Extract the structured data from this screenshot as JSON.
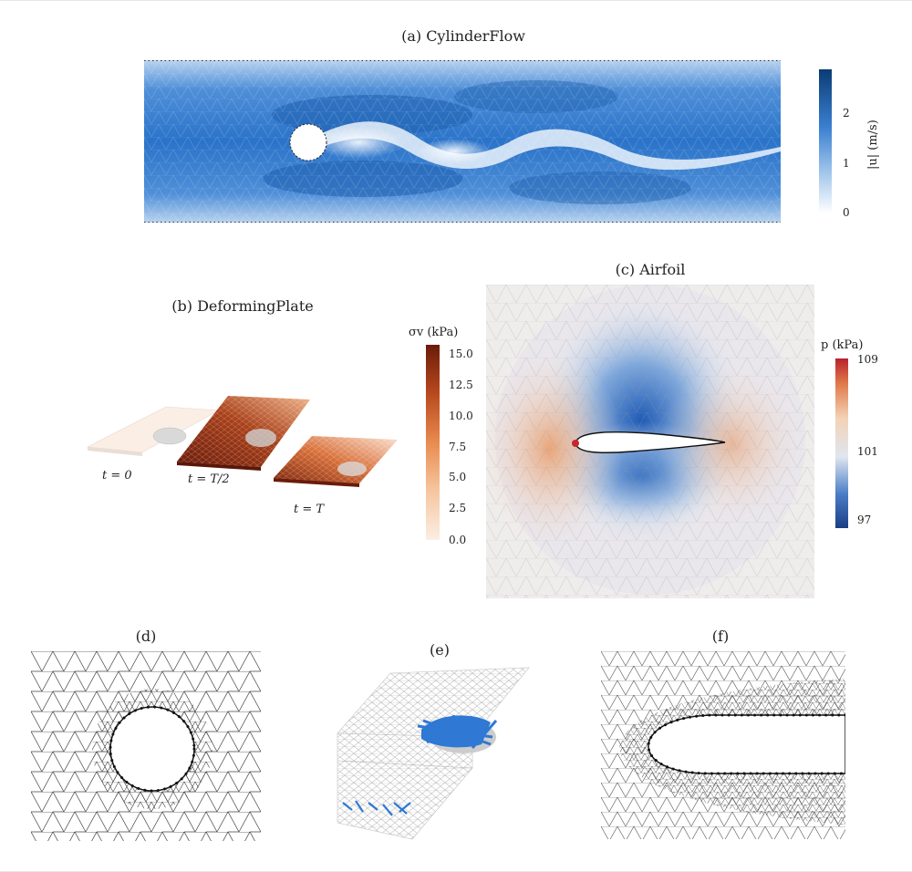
{
  "panels": {
    "a": {
      "title": "(a) CylinderFlow",
      "colorbar_label": "|u| (m/s)",
      "ticks": [
        "0",
        "1",
        "2"
      ],
      "colors": {
        "low": "#ffffff",
        "mid": "#4a90d9",
        "high": "#0b3c73"
      }
    },
    "b": {
      "title": "(b) DeformingPlate",
      "colorbar_label": "σv (kPa)",
      "ticks": [
        "0.0",
        "2.5",
        "5.0",
        "7.5",
        "10.0",
        "12.5",
        "15.0"
      ],
      "time_labels": [
        "t = 0",
        "t = T/2",
        "t = T"
      ],
      "colors": {
        "low": "#fbeee4",
        "mid": "#e98b4f",
        "high": "#6b1b0a"
      }
    },
    "c": {
      "title": "(c) Airfoil",
      "colorbar_label": "p (kPa)",
      "ticks": [
        "97",
        "101",
        "109"
      ],
      "colors": {
        "low": "#1a3f86",
        "mid": "#f0f0f0",
        "high": "#b8232d"
      }
    },
    "d": {
      "title": "(d)"
    },
    "e": {
      "title": "(e)",
      "colors": {
        "edges": "#2f78d4"
      }
    },
    "f": {
      "title": "(f)"
    }
  }
}
